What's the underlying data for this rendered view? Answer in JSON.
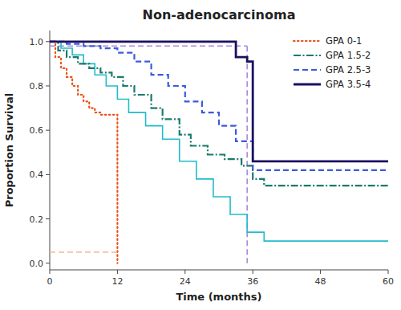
{
  "chart_data": {
    "type": "line",
    "title": "Non-adenocarcinoma",
    "x_label": "Time (months)",
    "y_label": "Proportion Survival",
    "xlim": [
      0,
      60
    ],
    "ylim": [
      -0.03,
      1.05
    ],
    "xticks": [
      0,
      12,
      24,
      36,
      48,
      60
    ],
    "yticks": [
      {
        "value": 0.0,
        "label": "0.0"
      },
      0.2,
      0.4,
      0.6,
      0.8,
      {
        "value": 1.0,
        "label": "1.0"
      }
    ],
    "grid": false,
    "legend": "upper right",
    "series": [
      {
        "type": "line",
        "color": "#aa88dd",
        "line_style": "dashed",
        "x": [
          0,
          35
        ],
        "values": [
          0.98,
          0.98
        ]
      },
      {
        "type": "line",
        "color": "#aa88dd",
        "line_style": "dashed",
        "x": [
          35,
          35
        ],
        "values": [
          0.98,
          0.0
        ]
      },
      {
        "type": "step",
        "color": "#22bbcc",
        "line_style": "solid",
        "x": [
          0,
          2,
          4,
          6,
          8,
          10,
          12,
          14,
          17,
          20,
          23,
          26,
          29,
          32,
          35,
          38,
          60
        ],
        "values": [
          1.0,
          0.97,
          0.94,
          0.9,
          0.85,
          0.8,
          0.74,
          0.68,
          0.62,
          0.56,
          0.46,
          0.38,
          0.3,
          0.22,
          0.14,
          0.1,
          0.1
        ]
      },
      {
        "type": "step",
        "name": "GPA 0-1",
        "color": "#e8541a",
        "line_style": "dotted",
        "x": [
          0,
          1,
          2,
          3,
          4,
          5,
          6,
          7,
          8,
          9,
          10,
          11,
          12
        ],
        "values": [
          1.0,
          0.93,
          0.88,
          0.84,
          0.8,
          0.76,
          0.73,
          0.7,
          0.68,
          0.67,
          0.67,
          0.67,
          0.0
        ]
      },
      {
        "type": "line",
        "color": "#f5b89a",
        "line_style": "dashed",
        "x": [
          0,
          12
        ],
        "values": [
          0.05,
          0.05
        ]
      },
      {
        "type": "step",
        "name": "GPA 1.5-2",
        "color": "#1a7a6e",
        "line_style": "dashdot",
        "x": [
          0,
          1.5,
          3,
          5,
          7,
          9,
          11,
          13,
          15,
          18,
          20,
          23,
          25,
          28,
          31,
          34,
          36,
          38,
          60
        ],
        "values": [
          1.0,
          0.96,
          0.93,
          0.9,
          0.88,
          0.86,
          0.84,
          0.8,
          0.76,
          0.7,
          0.65,
          0.58,
          0.53,
          0.49,
          0.47,
          0.44,
          0.38,
          0.35,
          0.35
        ]
      },
      {
        "type": "step",
        "name": "GPA 2.5-3",
        "color": "#3b5bdb",
        "line_style": "dashed",
        "x": [
          0,
          3,
          6,
          9,
          12,
          15,
          18,
          21,
          24,
          27,
          30,
          33,
          36,
          60
        ],
        "values": [
          1.0,
          0.99,
          0.98,
          0.97,
          0.95,
          0.91,
          0.85,
          0.8,
          0.73,
          0.68,
          0.62,
          0.55,
          0.42,
          0.42
        ]
      },
      {
        "type": "step",
        "name": "GPA 3.5-4",
        "color": "#1a1060",
        "line_style": "solid",
        "x": [
          0,
          12,
          24,
          33,
          35,
          36,
          60
        ],
        "values": [
          1.0,
          1.0,
          1.0,
          0.93,
          0.91,
          0.46,
          0.46
        ]
      }
    ]
  }
}
